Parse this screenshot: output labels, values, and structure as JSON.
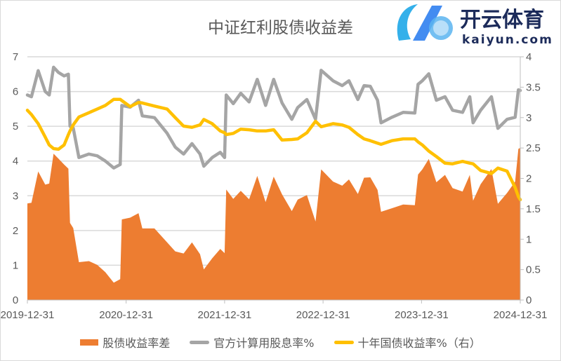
{
  "chart_data": {
    "type": "area+line",
    "title": "中证红利股债收益差",
    "x_range": [
      "2019-12-31",
      "2024-12-31"
    ],
    "x_ticks": [
      "2019-12-31",
      "2020-12-31",
      "2021-12-31",
      "2022-12-31",
      "2023-12-31",
      "2024-12-31"
    ],
    "y_left": {
      "range": [
        0,
        7
      ],
      "ticks": [
        "0",
        "1",
        "2",
        "3",
        "4",
        "5",
        "6",
        "7"
      ]
    },
    "y_right": {
      "range": [
        0,
        4
      ],
      "ticks": [
        "0",
        "0.5",
        "1",
        "1.5",
        "2",
        "2.5",
        "3",
        "3.5",
        "4"
      ]
    },
    "grid": true,
    "legend_position": "bottom",
    "x": [
      "2019-12-31",
      "2020-01-15",
      "2020-02-09",
      "2020-03-06",
      "2020-03-21",
      "2020-04-06",
      "2020-04-24",
      "2020-05-15",
      "2020-05-31",
      "2020-06-06",
      "2020-06-18",
      "2020-07-09",
      "2020-08-15",
      "2020-09-15",
      "2020-10-15",
      "2020-11-15",
      "2020-12-09",
      "2020-12-15",
      "2021-01-15",
      "2021-02-15",
      "2021-03-01",
      "2021-04-15",
      "2021-06-01",
      "2021-07-01",
      "2021-08-01",
      "2021-09-01",
      "2021-10-01",
      "2021-10-15",
      "2021-11-15",
      "2021-12-15",
      "2021-12-31",
      "2022-01-06",
      "2022-02-01",
      "2022-03-01",
      "2022-04-01",
      "2022-05-01",
      "2022-06-01",
      "2022-07-01",
      "2022-08-01",
      "2022-09-06",
      "2022-09-28",
      "2022-11-01",
      "2022-12-03",
      "2022-12-24",
      "2023-02-06",
      "2023-03-12",
      "2023-04-06",
      "2023-05-09",
      "2023-06-01",
      "2023-06-24",
      "2023-07-21",
      "2023-08-03",
      "2023-09-12",
      "2023-10-24",
      "2023-12-06",
      "2023-12-18",
      "2024-01-03",
      "2024-01-27",
      "2024-02-24",
      "2024-03-27",
      "2024-04-24",
      "2024-05-31",
      "2024-06-27",
      "2024-07-09",
      "2024-08-06",
      "2024-09-15",
      "2024-10-09",
      "2024-11-12",
      "2024-12-12",
      "2024-12-24",
      "2024-12-31"
    ],
    "series": [
      {
        "name": "股债收益率差",
        "type": "area",
        "axis": "left",
        "color": "#ED7D31",
        "values": [
          2.78,
          2.8,
          3.7,
          3.32,
          3.35,
          4.21,
          4.07,
          3.9,
          3.78,
          2.22,
          2.07,
          1.09,
          1.12,
          1.01,
          0.8,
          0.5,
          0.6,
          2.32,
          2.37,
          2.5,
          2.06,
          2.06,
          1.66,
          1.4,
          1.34,
          1.66,
          1.32,
          0.88,
          1.2,
          1.47,
          1.35,
          3.18,
          2.91,
          3.14,
          2.9,
          3.57,
          2.82,
          3.55,
          3.04,
          2.56,
          2.89,
          3.02,
          2.26,
          3.76,
          3.41,
          3.29,
          3.47,
          3.05,
          3.52,
          3.53,
          3.17,
          2.54,
          2.64,
          2.75,
          2.73,
          3.61,
          3.76,
          4.06,
          3.39,
          3.6,
          3.22,
          3.12,
          3.6,
          2.86,
          3.33,
          3.77,
          2.77,
          3.08,
          3.41,
          4.35,
          4.38
        ]
      },
      {
        "name": "官方计算用股息率%",
        "type": "line",
        "axis": "left",
        "color": "#A5A5A5",
        "values": [
          5.9,
          5.85,
          6.6,
          6.0,
          5.9,
          6.7,
          6.55,
          6.45,
          6.5,
          5.0,
          4.95,
          4.1,
          4.2,
          4.15,
          4.0,
          3.8,
          3.9,
          5.6,
          5.55,
          5.75,
          5.3,
          5.25,
          4.8,
          4.4,
          4.2,
          4.5,
          4.2,
          3.85,
          4.1,
          4.25,
          4.1,
          5.9,
          5.65,
          5.95,
          5.7,
          6.35,
          5.6,
          6.35,
          5.67,
          5.2,
          5.54,
          5.77,
          5.2,
          6.61,
          6.31,
          6.17,
          6.31,
          5.77,
          6.17,
          6.15,
          5.75,
          5.1,
          5.26,
          5.4,
          5.38,
          6.21,
          6.31,
          6.51,
          5.75,
          5.85,
          5.46,
          5.4,
          5.85,
          5.1,
          5.46,
          5.85,
          4.94,
          5.2,
          5.26,
          6.05,
          6.03
        ]
      },
      {
        "name": "十年国债收益率%（右）",
        "type": "line",
        "axis": "right",
        "color": "#FFC000",
        "values": [
          3.12,
          3.05,
          2.9,
          2.68,
          2.55,
          2.49,
          2.48,
          2.55,
          2.72,
          2.78,
          2.88,
          3.01,
          3.08,
          3.14,
          3.2,
          3.3,
          3.3,
          3.28,
          3.18,
          3.25,
          3.24,
          3.19,
          3.14,
          3.0,
          2.86,
          2.84,
          2.88,
          2.97,
          2.9,
          2.78,
          2.75,
          2.72,
          2.74,
          2.81,
          2.8,
          2.78,
          2.78,
          2.8,
          2.63,
          2.64,
          2.65,
          2.75,
          2.94,
          2.85,
          2.9,
          2.88,
          2.84,
          2.72,
          2.65,
          2.62,
          2.58,
          2.56,
          2.62,
          2.65,
          2.65,
          2.6,
          2.55,
          2.45,
          2.36,
          2.25,
          2.24,
          2.28,
          2.25,
          2.24,
          2.13,
          2.08,
          2.17,
          2.12,
          1.85,
          1.7,
          1.65
        ]
      }
    ]
  },
  "legend": [
    "股债收益率差",
    "官方计算用股息率%",
    "十年国债收益率%（右）"
  ],
  "watermark": {
    "brand": "开云体育",
    "domain": "kaiyun.com"
  }
}
